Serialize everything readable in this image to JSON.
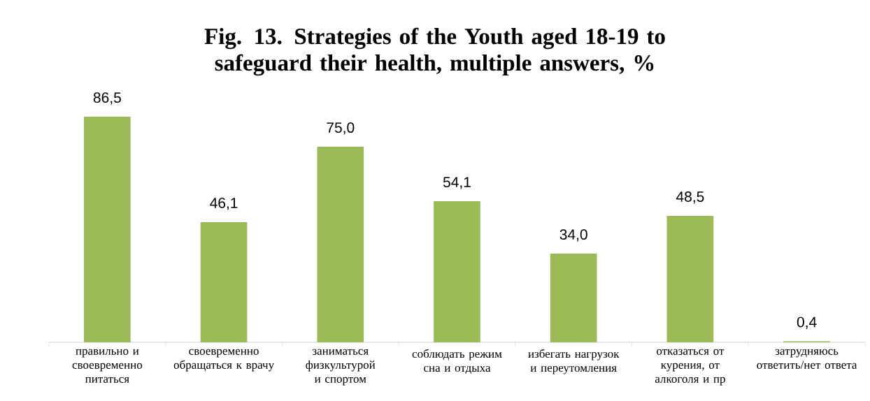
{
  "chart_data": {
    "type": "bar",
    "title": "Fig. 13. Strategies of the Youth aged 18-19 to safeguard their health, multiple answers, %",
    "categories": [
      "правильно и своевременно питаться",
      "своевременно обращаться к врачу",
      "заниматься физкультурой и спортом",
      "соблюдать режим сна и отдыха",
      "избегать нагрузок и переутомления",
      "отказаться от курения, от алкоголя и пр",
      "затрудняюсь ответить/нет ответа"
    ],
    "values": [
      86.5,
      46.1,
      75.0,
      54.1,
      34.0,
      48.5,
      0.4
    ],
    "value_labels": [
      "86,5",
      "46,1",
      "75,0",
      "54,1",
      "34,0",
      "48,5",
      "0,4"
    ],
    "color": "#9bbb59"
  }
}
